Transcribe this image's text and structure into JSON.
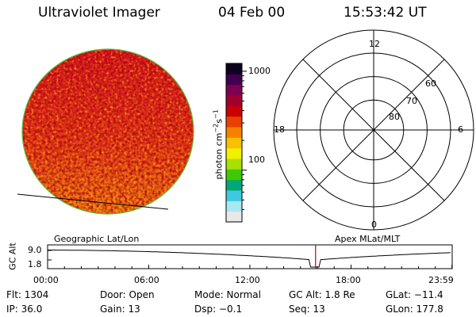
{
  "header": {
    "instrument": "Ultraviolet Imager",
    "date": "04 Feb 00",
    "time": "15:53:42 UT"
  },
  "colorbar": {
    "label": "photon cm",
    "label_sup1": "−2",
    "label_mid": "s",
    "label_sup2": "−1",
    "ticks": [
      {
        "label": "1000",
        "value": 1000
      },
      {
        "label": "100",
        "value": 100
      }
    ],
    "range": [
      30,
      1200
    ],
    "colors": [
      "#e8e8e8",
      "#a8e8f0",
      "#40c8e0",
      "#00a878",
      "#40c800",
      "#a8e000",
      "#f0f000",
      "#f8c000",
      "#f88000",
      "#e84000",
      "#c80000",
      "#a00030",
      "#800050",
      "#400050",
      "#100020"
    ]
  },
  "polar": {
    "mlt_labels": [
      {
        "label": "12",
        "angle": 90
      },
      {
        "label": "18",
        "angle": 180
      },
      {
        "label": "6",
        "angle": 0
      },
      {
        "label": "0",
        "angle": 270
      }
    ],
    "lat_labels": [
      {
        "label": "60",
        "ring": 3
      },
      {
        "label": "70",
        "ring": 2
      },
      {
        "label": "80",
        "ring": 1
      }
    ]
  },
  "timeline": {
    "left_label": "Geographic Lat/Lon",
    "right_label": "Apex MLat/MLT",
    "ylabel": "GC Alt",
    "yticks": [
      {
        "label": "9.0",
        "value": 9.0
      },
      {
        "label": "1.8",
        "value": 1.8
      }
    ],
    "xticks": [
      {
        "label": "00:00",
        "hour": 0
      },
      {
        "label": "06:00",
        "hour": 6
      },
      {
        "label": "12:00",
        "hour": 12
      },
      {
        "label": "18:00",
        "hour": 18
      },
      {
        "label": "23:59",
        "hour": 23.983
      }
    ],
    "current_hour": 15.895
  },
  "info": {
    "flt": "Flt: 1304",
    "door": "Door: Open",
    "mode": "Mode: Normal",
    "gc_alt": "GC Alt: 1.8 Re",
    "glat": "GLat: −11.4",
    "ip": "IP: 36.0",
    "gain": "Gain: 13",
    "dsp": "Dsp:    −0.1",
    "seq": "Seq: 13",
    "glon": "GLon: 177.8"
  }
}
